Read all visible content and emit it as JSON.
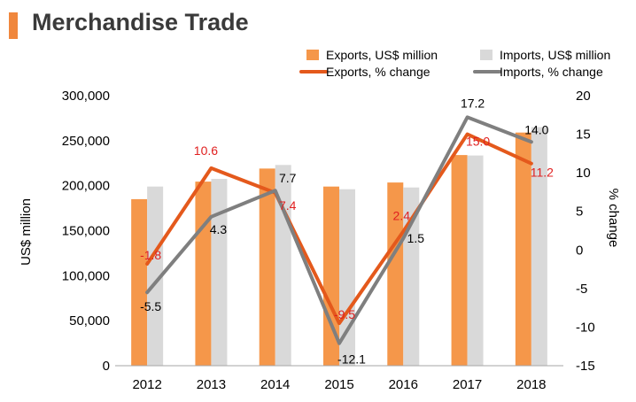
{
  "title": "Merchandise Trade",
  "colors": {
    "exports_bar": "#f5974a",
    "imports_bar": "#d9d9d9",
    "exports_line": "#e4591c",
    "imports_line": "#7f7f7f",
    "exports_label": "#e02020",
    "imports_label": "#000000",
    "title_accent": "#f0873d"
  },
  "chart_data": {
    "type": "bar",
    "categories": [
      "2012",
      "2013",
      "2014",
      "2015",
      "2016",
      "2017",
      "2018"
    ],
    "ylabel": "US$ million",
    "y2label": "% change",
    "ylim": [
      0,
      300000
    ],
    "y2lim": [
      -15,
      20
    ],
    "yticks": [
      "0",
      "50,000",
      "100,000",
      "150,000",
      "200,000",
      "250,000",
      "300,000"
    ],
    "y2ticks": [
      "-15",
      "-10",
      "-5",
      "0",
      "5",
      "10",
      "15",
      "20"
    ],
    "legend_position": "top-right",
    "series": [
      {
        "name": "Exports, US$ million",
        "kind": "bar",
        "axis": "left",
        "values": [
          185000,
          204500,
          219000,
          199000,
          203500,
          234000,
          259000
        ]
      },
      {
        "name": "Imports, US$ million",
        "kind": "bar",
        "axis": "left",
        "values": [
          199000,
          207500,
          223000,
          196000,
          198000,
          233500,
          265000
        ]
      },
      {
        "name": "Exports, % change",
        "kind": "line",
        "axis": "right",
        "values": [
          -1.8,
          10.6,
          7.4,
          -9.5,
          2.4,
          15.0,
          11.2
        ],
        "labels": [
          "-1.8",
          "10.6",
          "7.4",
          "-9.5",
          "2.4",
          "15.0",
          "11.2"
        ]
      },
      {
        "name": "Imports, % change",
        "kind": "line",
        "axis": "right",
        "values": [
          -5.5,
          4.3,
          7.7,
          -12.1,
          1.5,
          17.2,
          14.0
        ],
        "labels": [
          "-5.5",
          "4.3",
          "7.7",
          "-12.1",
          "1.5",
          "17.2",
          "14.0"
        ]
      }
    ]
  }
}
